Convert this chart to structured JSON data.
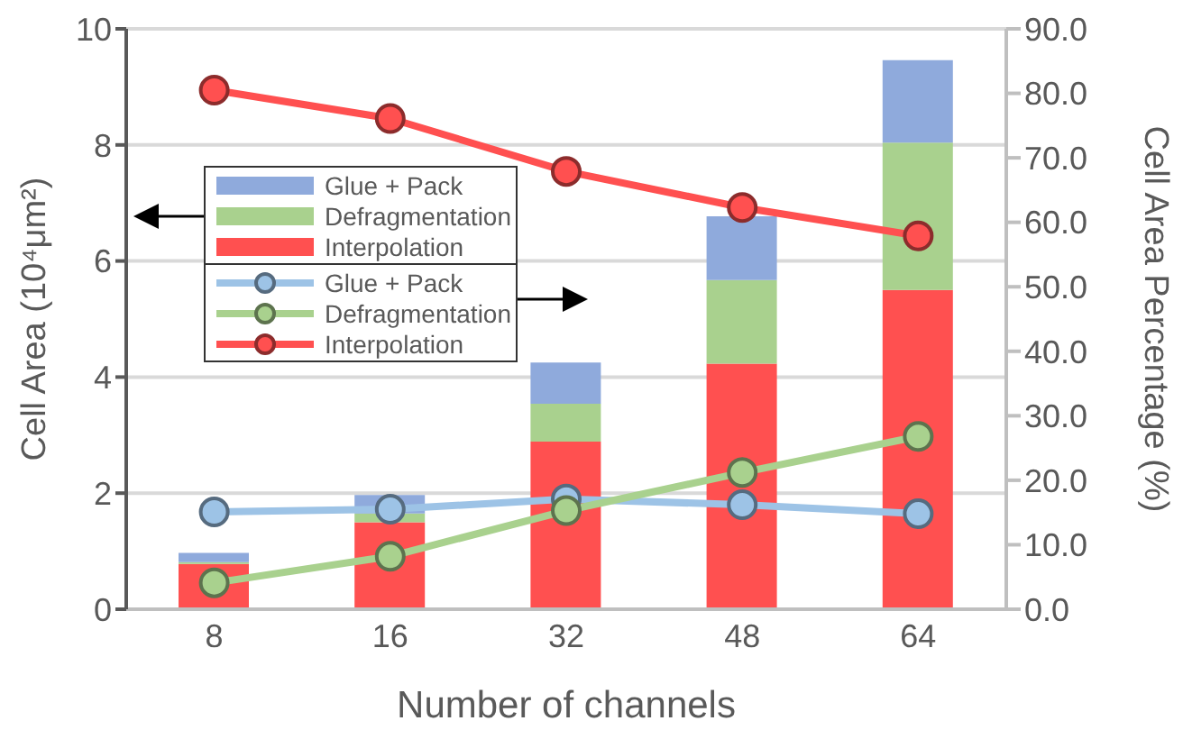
{
  "chart_data": {
    "type": "bar",
    "stacked": true,
    "xlabel": "Number of channels",
    "ylabel": "Cell Area (10⁴μm²)",
    "y2label": "Cell Area Percentage (%)",
    "categories": [
      "8",
      "16",
      "32",
      "48",
      "64"
    ],
    "series": [
      {
        "name": "Interpolation",
        "color": "#ff5050",
        "values": [
          0.78,
          1.5,
          2.89,
          4.23,
          5.5
        ]
      },
      {
        "name": "Defragmentation",
        "color": "#a9d18e",
        "values": [
          0.03,
          0.15,
          0.65,
          1.44,
          2.54
        ]
      },
      {
        "name": "Glue + Pack",
        "color": "#8faadc",
        "values": [
          0.16,
          0.32,
          0.71,
          1.1,
          1.42
        ]
      },
      {
        "name": "Glue + Pack",
        "type": "line",
        "axis": "y2",
        "color": "#9dc3e6",
        "values": [
          15.1,
          15.5,
          17.1,
          16.2,
          14.8
        ]
      },
      {
        "name": "Defragmentation",
        "type": "line",
        "axis": "y2",
        "color": "#a9d18e",
        "values": [
          4.1,
          8.2,
          15.3,
          21.2,
          26.8
        ]
      },
      {
        "name": "Interpolation",
        "type": "line",
        "axis": "y2",
        "color": "#ff5050",
        "values": [
          80.5,
          76.1,
          67.9,
          62.3,
          57.9
        ]
      }
    ],
    "ylim": [
      0,
      10
    ],
    "yticks": [
      0,
      2,
      4,
      6,
      8,
      10
    ],
    "y2lim": [
      0,
      90
    ],
    "y2ticks": [
      {
        "value": 0,
        "label": "0.0"
      },
      {
        "value": 10,
        "label": "10.0"
      },
      {
        "value": 20,
        "label": "20.0"
      },
      {
        "value": 30,
        "label": "30.0"
      },
      {
        "value": 40,
        "label": "40.0"
      },
      {
        "value": 50,
        "label": "50.0"
      },
      {
        "value": 60,
        "label": "60.0"
      },
      {
        "value": 70,
        "label": "70.0"
      },
      {
        "value": 80,
        "label": "80.0"
      },
      {
        "value": 90,
        "label": "90.0"
      }
    ],
    "grid": "y",
    "legend": "left",
    "marker": "circle"
  }
}
